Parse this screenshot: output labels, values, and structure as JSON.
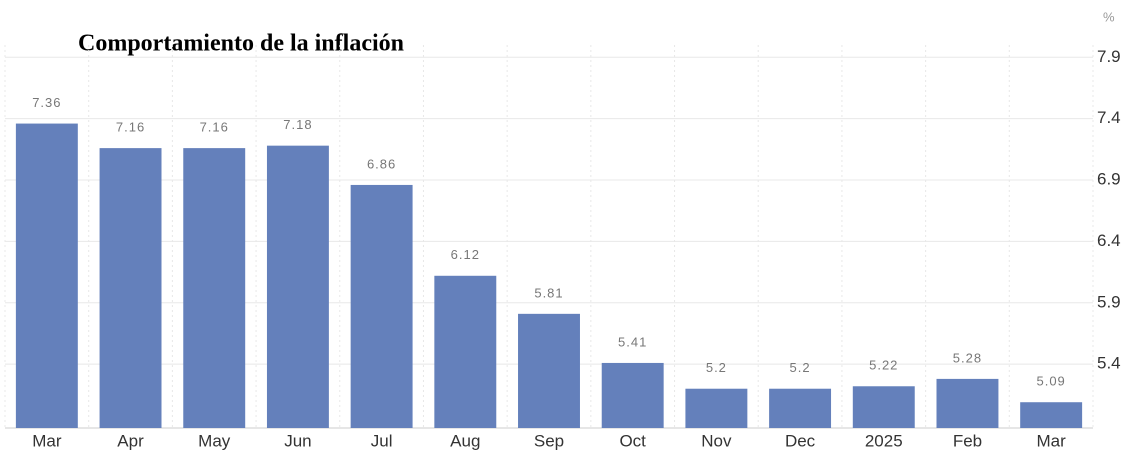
{
  "chart_data": {
    "type": "bar",
    "title": "Comportamiento de la inflación",
    "unit": "%",
    "categories": [
      "Mar",
      "Apr",
      "May",
      "Jun",
      "Jul",
      "Aug",
      "Sep",
      "Oct",
      "Nov",
      "Dec",
      "2025",
      "Feb",
      "Mar"
    ],
    "values": [
      7.36,
      7.16,
      7.16,
      7.18,
      6.86,
      6.12,
      5.81,
      5.41,
      5.2,
      5.2,
      5.22,
      5.28,
      5.09
    ],
    "color": "#6480bb",
    "ylim": [
      4.88,
      8.0
    ],
    "yticks": [
      5.4,
      5.9,
      6.4,
      6.9,
      7.4,
      7.9
    ],
    "grid": true,
    "y_axis_side": "right"
  }
}
